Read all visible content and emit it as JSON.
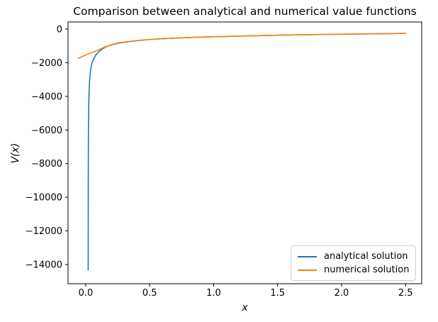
{
  "figure": {
    "title": "Comparison between analytical and numerical value functions"
  },
  "chart_data": {
    "type": "line",
    "title": "Comparison between analytical and numerical value functions",
    "xlabel": "x",
    "ylabel": "V(x)",
    "xlim": [
      -0.1385,
      2.626
    ],
    "ylim": [
      -15140,
      422
    ],
    "grid": false,
    "xticks": {
      "values": [
        0.0,
        0.5,
        1.0,
        1.5,
        2.0,
        2.5
      ],
      "labels": [
        "0.0",
        "0.5",
        "1.0",
        "1.5",
        "2.0",
        "2.5"
      ]
    },
    "yticks": {
      "values": [
        0,
        -2000,
        -4000,
        -6000,
        -8000,
        -10000,
        -12000,
        -14000
      ],
      "labels": [
        "0",
        "−2000",
        "−4000",
        "−6000",
        "−8000",
        "−10000",
        "−12000",
        "−14000"
      ]
    },
    "legend": {
      "position": "lower right"
    },
    "series": [
      {
        "name": "analytical solution",
        "color": "#1f77b4",
        "points": [
          [
            0.019,
            -14330
          ],
          [
            0.0195,
            -10600
          ],
          [
            0.02,
            -7900
          ],
          [
            0.021,
            -6000
          ],
          [
            0.023,
            -4650
          ],
          [
            0.026,
            -3750
          ],
          [
            0.03,
            -3080
          ],
          [
            0.035,
            -2620
          ],
          [
            0.04,
            -2330
          ],
          [
            0.05,
            -1990
          ],
          [
            0.065,
            -1725
          ],
          [
            0.08,
            -1525
          ],
          [
            0.1,
            -1355
          ],
          [
            0.13,
            -1175
          ],
          [
            0.16,
            -1050
          ],
          [
            0.2,
            -940
          ],
          [
            0.25,
            -848
          ],
          [
            0.3,
            -782
          ],
          [
            0.4,
            -688
          ],
          [
            0.5,
            -622
          ],
          [
            0.6,
            -574
          ],
          [
            0.75,
            -520
          ],
          [
            0.9,
            -478
          ],
          [
            1.0,
            -455
          ],
          [
            1.2,
            -416
          ],
          [
            1.4,
            -382
          ],
          [
            1.6,
            -352
          ],
          [
            1.8,
            -327
          ],
          [
            2.0,
            -305
          ],
          [
            2.25,
            -281
          ],
          [
            2.5,
            -257
          ]
        ]
      },
      {
        "name": "numerical solution",
        "color": "#ff7f0e",
        "points": [
          [
            -0.06,
            -1745
          ],
          [
            -0.03,
            -1640
          ],
          [
            0.0,
            -1540
          ],
          [
            0.03,
            -1450
          ],
          [
            0.06,
            -1360
          ],
          [
            0.08,
            -1300
          ],
          [
            0.1,
            -1240
          ],
          [
            0.13,
            -1130
          ],
          [
            0.16,
            -1035
          ],
          [
            0.2,
            -930
          ],
          [
            0.25,
            -830
          ],
          [
            0.3,
            -770
          ],
          [
            0.4,
            -680
          ],
          [
            0.5,
            -618
          ],
          [
            0.6,
            -571
          ],
          [
            0.75,
            -519
          ],
          [
            0.9,
            -478
          ],
          [
            1.0,
            -454
          ],
          [
            1.2,
            -414
          ],
          [
            1.4,
            -380
          ],
          [
            1.6,
            -350
          ],
          [
            1.8,
            -325
          ],
          [
            2.0,
            -303
          ],
          [
            2.25,
            -279
          ],
          [
            2.5,
            -255
          ]
        ]
      }
    ]
  }
}
